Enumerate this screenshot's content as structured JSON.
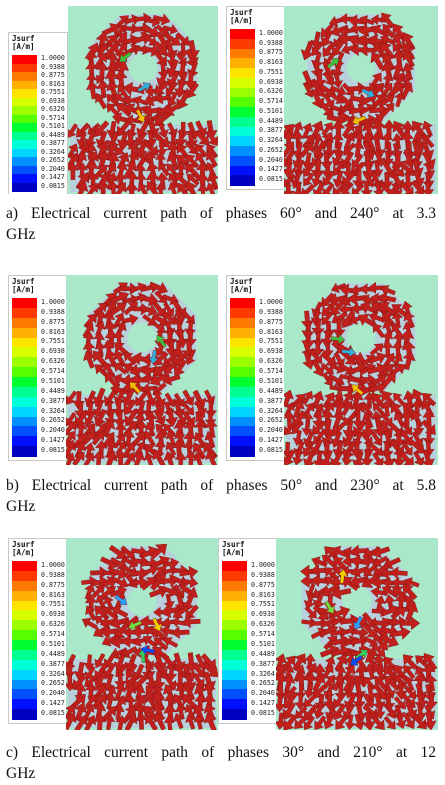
{
  "legend": {
    "title_line1": "Jsurf",
    "title_line2": "[A/m]",
    "values": [
      "1.0000",
      "0.9388",
      "0.8775",
      "0.8163",
      "0.7551",
      "0.6938",
      "0.6326",
      "0.5714",
      "0.5101",
      "0.4489",
      "0.3877",
      "0.3264",
      "0.2652",
      "0.2040",
      "0.1427",
      "0.0815"
    ],
    "colors": [
      "#ff0000",
      "#ff3a00",
      "#ff7a00",
      "#ffb000",
      "#ffe400",
      "#d8ff00",
      "#9cff00",
      "#55ff00",
      "#00ff30",
      "#00ff90",
      "#00ffd8",
      "#00d4ff",
      "#0090ff",
      "#0050ff",
      "#0010ff",
      "#0000c0"
    ]
  },
  "rows": [
    {
      "caption_line1": "a)  Electrical  current  path  of  phases  60°  and  240°  at  3.3",
      "caption_line2": "GHz",
      "panels": [
        {
          "state": "phase 60°"
        },
        {
          "state": "phase 240°"
        }
      ]
    },
    {
      "caption_line1": "b)  Electrical  current  path  of  phases  50°  and  230°  at  5.8",
      "caption_line2": "GHz",
      "panels": [
        {
          "state": "phase 50°"
        },
        {
          "state": "phase 230°"
        }
      ]
    },
    {
      "caption_line1": "c)  Electrical  current  path  of  phases  30°  and  210°  at  12",
      "caption_line2": "GHz",
      "panels": [
        {
          "state": "phase 30°"
        },
        {
          "state": "phase 210°"
        }
      ]
    }
  ],
  "colors": {
    "sim_background": "#a9e8c8",
    "antenna_metal": "#b8d0dc",
    "arrow": "#c0201c"
  }
}
